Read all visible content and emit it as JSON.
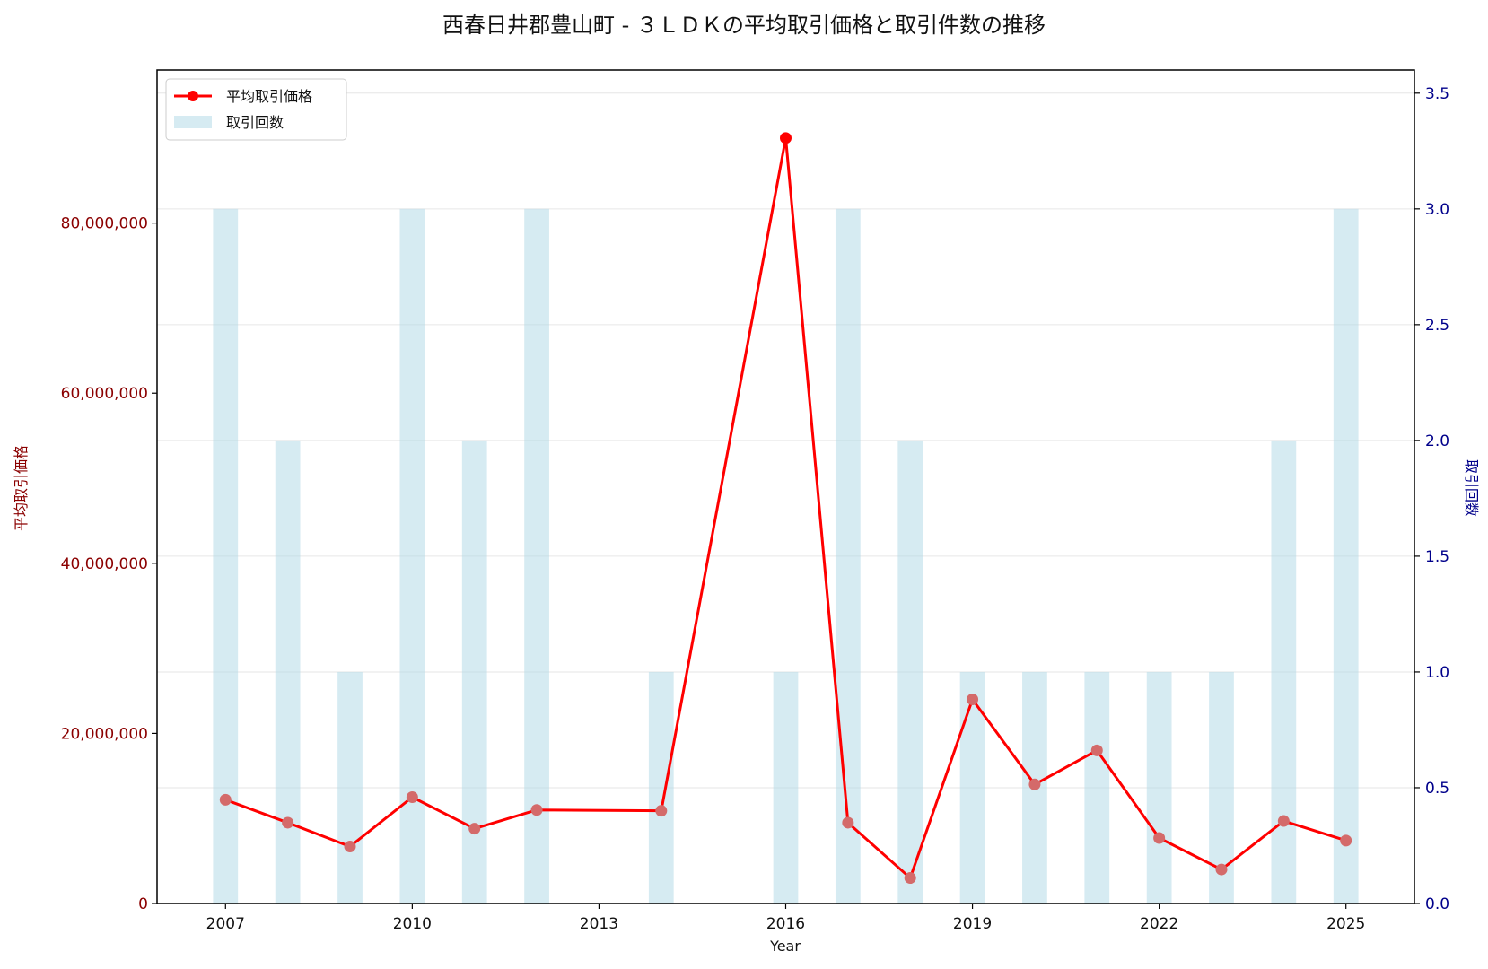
{
  "chart_data": {
    "type": "bar+line",
    "title": "西春日井郡豊山町 - ３ＬＤＫの平均取引価格と取引件数の推移",
    "xlabel": "Year",
    "ylabel_left": "平均取引価格",
    "ylabel_right": "取引回数",
    "xlim": [
      2005.9,
      2026.1
    ],
    "ylim_left": [
      0,
      98000000
    ],
    "ylim_right": [
      0,
      3.6
    ],
    "x_ticks": [
      2007,
      2010,
      2013,
      2016,
      2019,
      2022,
      2025
    ],
    "y_left_ticks": [
      0,
      20000000,
      40000000,
      60000000,
      80000000
    ],
    "y_left_tick_labels": [
      "0",
      "20,000,000",
      "40,000,000",
      "60,000,000",
      "80,000,000"
    ],
    "y_right_ticks": [
      0.0,
      0.5,
      1.0,
      1.5,
      2.0,
      2.5,
      3.0,
      3.5
    ],
    "y_right_tick_labels": [
      "0.0",
      "0.5",
      "1.0",
      "1.5",
      "2.0",
      "2.5",
      "3.0",
      "3.5"
    ],
    "grid": true,
    "legend_position": "top-left",
    "series": [
      {
        "name": "平均取引価格",
        "kind": "line",
        "axis": "left",
        "color": "#ff0000",
        "marker_color": "#d46a6a",
        "x": [
          2007,
          2008,
          2009,
          2010,
          2011,
          2012,
          2014,
          2016,
          2017,
          2018,
          2019,
          2020,
          2021,
          2022,
          2023,
          2024,
          2025
        ],
        "values": [
          12200000,
          9500000,
          6700000,
          12500000,
          8800000,
          11000000,
          10900000,
          90000000,
          9500000,
          3000000,
          24000000,
          14000000,
          18000000,
          7700000,
          4000000,
          9700000,
          7400000
        ]
      },
      {
        "name": "取引回数",
        "kind": "bar",
        "axis": "right",
        "color": "#add8e6",
        "x": [
          2007,
          2008,
          2009,
          2010,
          2011,
          2012,
          2014,
          2016,
          2017,
          2018,
          2019,
          2020,
          2021,
          2022,
          2023,
          2024,
          2025
        ],
        "values": [
          3,
          2,
          1,
          3,
          2,
          3,
          1,
          1,
          3,
          2,
          1,
          1,
          1,
          1,
          1,
          2,
          3
        ]
      }
    ]
  },
  "colors": {
    "left_axis": "#8b0000",
    "right_axis": "#00008b",
    "grid": "#e6e6e6",
    "axis_line": "#000000"
  }
}
